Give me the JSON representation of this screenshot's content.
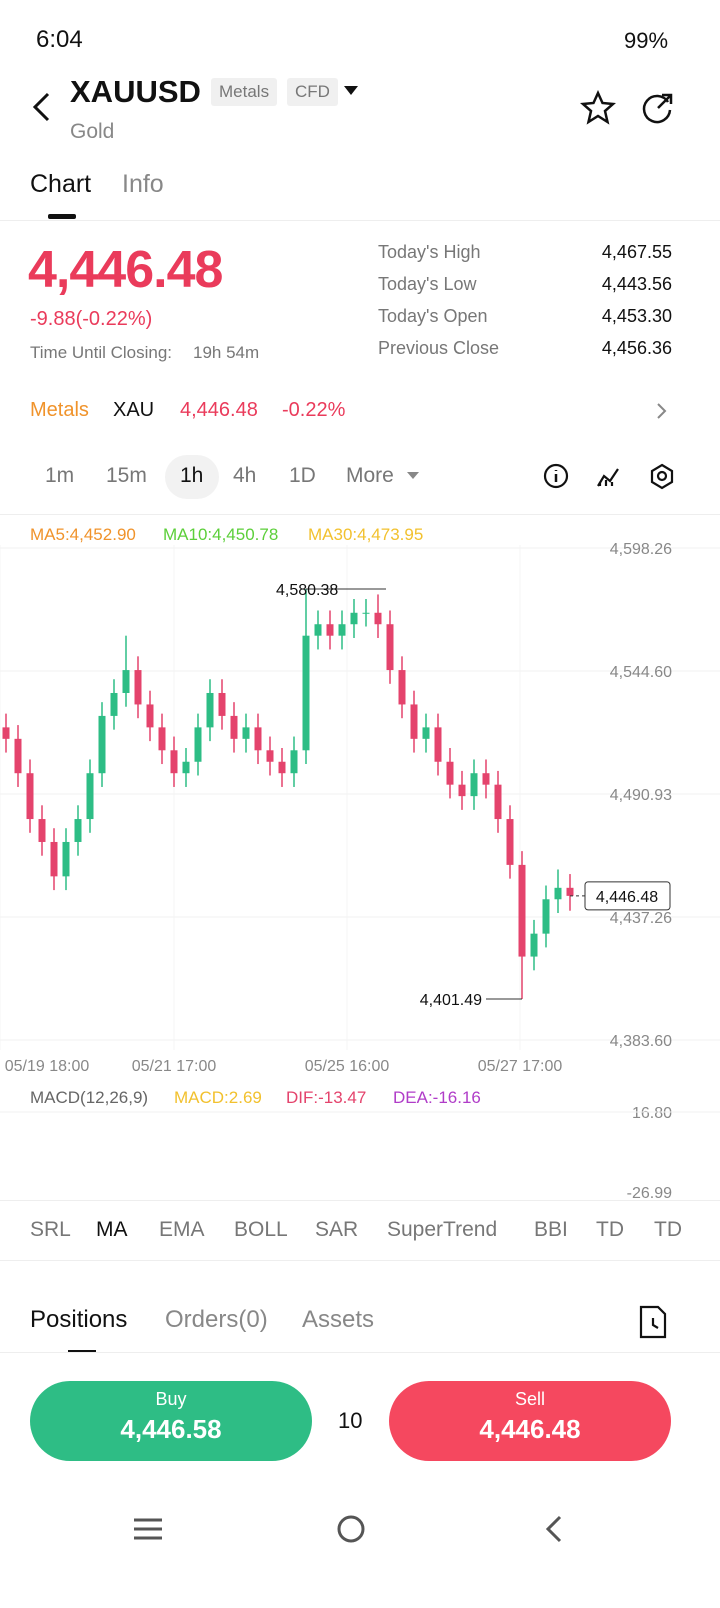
{
  "status": {
    "time": "6:04",
    "battery": "99%"
  },
  "header": {
    "symbol": "XAUUSD",
    "tags": [
      "Metals",
      "CFD"
    ],
    "name": "Gold"
  },
  "tabs": [
    "Chart",
    "Info"
  ],
  "quote": {
    "price": "4,446.48",
    "change": "-9.88(-0.22%)",
    "closing_label": "Time Until Closing:",
    "closing_value": "19h 54m",
    "stats": [
      [
        "Today's High",
        "4,467.55"
      ],
      [
        "Today's Low",
        "4,443.56"
      ],
      [
        "Today's Open",
        "4,453.30"
      ],
      [
        "Previous Close",
        "4,456.36"
      ]
    ]
  },
  "market": {
    "category": "Metals",
    "symbol": "XAU",
    "price": "4,446.48",
    "change": "-0.22%"
  },
  "intervals": [
    "1m",
    "15m",
    "1h",
    "4h",
    "1D",
    "More"
  ],
  "chart": {
    "type": "candlestick",
    "ma_labels": [
      {
        "label": "MA5:4,452.90",
        "color": "#f0932b"
      },
      {
        "label": "MA10:4,450.78",
        "color": "#5ccf3a"
      },
      {
        "label": "MA30:4,473.95",
        "color": "#f2c12e"
      }
    ],
    "ylim": [
      4383.6,
      4598.26
    ],
    "yticks": [
      {
        "value": 4598.26,
        "label": "4,598.26"
      },
      {
        "value": 4544.6,
        "label": "4,544.60"
      },
      {
        "value": 4490.93,
        "label": "4,490.93"
      },
      {
        "value": 4437.26,
        "label": "4,437.26"
      },
      {
        "value": 4383.6,
        "label": "4,383.60"
      }
    ],
    "xlabels": [
      "05/19 18:00",
      "05/21 17:00",
      "05/25 16:00",
      "05/27 17:00"
    ],
    "up_color": "#2dbd85",
    "down_color": "#e4436c",
    "candles": [
      [
        4520,
        4526,
        4509,
        4515
      ],
      [
        4515,
        4521,
        4494,
        4500
      ],
      [
        4500,
        4506,
        4474,
        4480
      ],
      [
        4480,
        4486,
        4464,
        4470
      ],
      [
        4470,
        4476,
        4449,
        4455
      ],
      [
        4455,
        4476,
        4449,
        4470
      ],
      [
        4470,
        4486,
        4464,
        4480
      ],
      [
        4480,
        4506,
        4474,
        4500
      ],
      [
        4500,
        4531,
        4494,
        4525
      ],
      [
        4525,
        4541,
        4519,
        4535
      ],
      [
        4535,
        4560,
        4529,
        4545
      ],
      [
        4545,
        4551,
        4524,
        4530
      ],
      [
        4530,
        4536,
        4514,
        4520
      ],
      [
        4520,
        4526,
        4504,
        4510
      ],
      [
        4510,
        4516,
        4494,
        4500
      ],
      [
        4500,
        4511,
        4494,
        4505
      ],
      [
        4505,
        4526,
        4499,
        4520
      ],
      [
        4520,
        4541,
        4514,
        4535
      ],
      [
        4535,
        4541,
        4519,
        4525
      ],
      [
        4525,
        4531,
        4509,
        4515
      ],
      [
        4515,
        4526,
        4509,
        4520
      ],
      [
        4520,
        4526,
        4504,
        4510
      ],
      [
        4510,
        4516,
        4499,
        4505
      ],
      [
        4505,
        4511,
        4494,
        4500
      ],
      [
        4500,
        4516,
        4494,
        4510
      ],
      [
        4510,
        4580.38,
        4504,
        4560
      ],
      [
        4560,
        4571,
        4554,
        4565
      ],
      [
        4565,
        4571,
        4554,
        4560
      ],
      [
        4560,
        4571,
        4554,
        4565
      ],
      [
        4565,
        4576,
        4559,
        4570
      ],
      [
        4570,
        4576,
        4564,
        4570
      ],
      [
        4570,
        4578,
        4559,
        4565
      ],
      [
        4565,
        4571,
        4539,
        4545
      ],
      [
        4545,
        4551,
        4524,
        4530
      ],
      [
        4530,
        4536,
        4509,
        4515
      ],
      [
        4515,
        4526,
        4509,
        4520
      ],
      [
        4520,
        4526,
        4499,
        4505
      ],
      [
        4505,
        4511,
        4489,
        4495
      ],
      [
        4495,
        4501,
        4484,
        4490
      ],
      [
        4490,
        4506,
        4484,
        4500
      ],
      [
        4500,
        4506,
        4489,
        4495
      ],
      [
        4495,
        4501,
        4474,
        4480
      ],
      [
        4480,
        4486,
        4454,
        4460
      ],
      [
        4460,
        4466,
        4401.49,
        4420
      ],
      [
        4420,
        4436,
        4414,
        4430
      ],
      [
        4430,
        4451,
        4424,
        4445
      ],
      [
        4445,
        4458,
        4439,
        4450
      ],
      [
        4450,
        4456,
        4440,
        4446.48
      ]
    ],
    "annotations": [
      {
        "value": 4580.38,
        "label": "4,580.38",
        "candle": 25
      },
      {
        "value": 4401.49,
        "label": "4,401.49",
        "candle": 43
      }
    ],
    "last": {
      "value": 4446.48,
      "label": "4,446.48"
    }
  },
  "macd": {
    "labels": [
      {
        "label": "MACD(12,26,9)",
        "color": "#666666"
      },
      {
        "label": "MACD:2.69",
        "color": "#f2c12e"
      },
      {
        "label": "DIF:-13.47",
        "color": "#e4436c"
      },
      {
        "label": "DEA:-16.16",
        "color": "#b03cc8"
      }
    ],
    "top": "16.80",
    "bottom": "-26.99"
  },
  "indicators": [
    "SRL",
    "MA",
    "EMA",
    "BOLL",
    "SAR",
    "SuperTrend",
    "BBI",
    "TD",
    "TD"
  ],
  "positions_tabs": [
    "Positions",
    "Orders(0)",
    "Assets"
  ],
  "trade": {
    "buy_label": "Buy",
    "buy_price": "4,446.58",
    "quantity": "10",
    "sell_label": "Sell",
    "sell_price": "4,446.48"
  }
}
